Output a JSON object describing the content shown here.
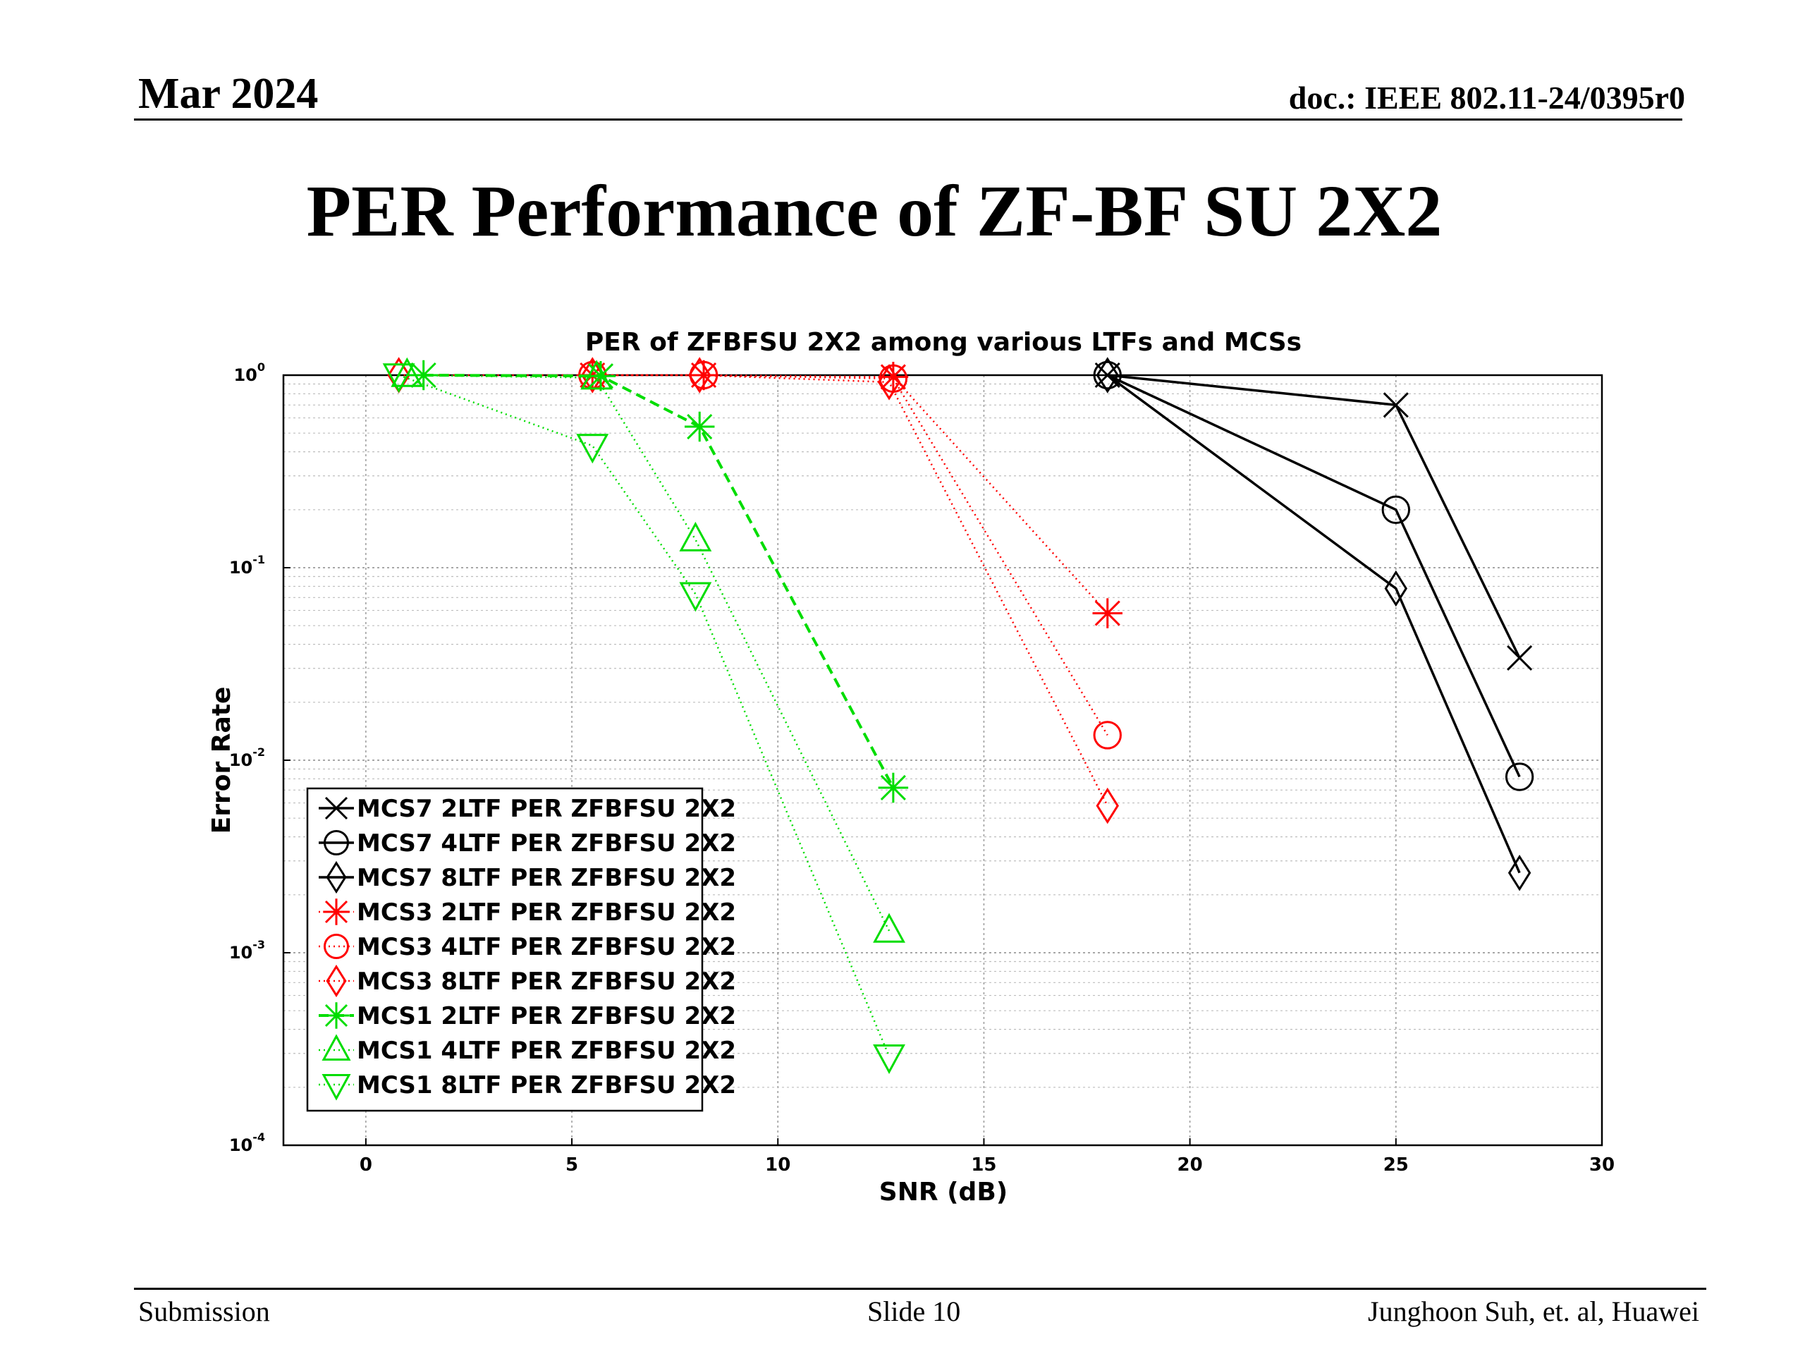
{
  "header": {
    "date": "Mar 2024",
    "doc_id": "doc.: IEEE 802.11-24/0395r0"
  },
  "slide": {
    "title": "PER Performance of ZF-BF SU 2X2"
  },
  "footer": {
    "left": "Submission",
    "center": "Slide 10",
    "right": "Junghoon Suh, et. al, Huawei"
  },
  "chart_data": {
    "type": "line",
    "title": "PER of ZFBFSU 2X2 among various LTFs and MCSs",
    "xlabel": "SNR (dB)",
    "ylabel": "Error Rate",
    "xlim": [
      -2,
      30
    ],
    "ylim": [
      0.0001,
      1
    ],
    "yscale": "log",
    "grid": true,
    "legend_position": "lower-left",
    "x_ticks": [
      {
        "value": 0,
        "label": "0"
      },
      {
        "value": 5,
        "label": "5"
      },
      {
        "value": 10,
        "label": "10"
      },
      {
        "value": 15,
        "label": "15"
      },
      {
        "value": 20,
        "label": "20"
      },
      {
        "value": 25,
        "label": "25"
      },
      {
        "value": 30,
        "label": "30"
      }
    ],
    "y_ticks": [
      {
        "value": 1,
        "base": "10",
        "exp": "0"
      },
      {
        "value": 0.1,
        "base": "10",
        "exp": "-1"
      },
      {
        "value": 0.01,
        "base": "10",
        "exp": "-2"
      },
      {
        "value": 0.001,
        "base": "10",
        "exp": "-3"
      },
      {
        "value": 0.0001,
        "base": "10",
        "exp": "-4"
      }
    ],
    "series": [
      {
        "name": "MCS7 2LTF PER ZFBFSU 2X2",
        "color": "#000000",
        "marker": "x",
        "style": "solid",
        "x": [
          18,
          25,
          28
        ],
        "y": [
          1.0,
          0.7,
          0.034
        ]
      },
      {
        "name": "MCS7 4LTF PER ZFBFSU 2X2",
        "color": "#000000",
        "marker": "circle",
        "style": "solid",
        "x": [
          18,
          25,
          28
        ],
        "y": [
          1.0,
          0.2,
          0.0082
        ]
      },
      {
        "name": "MCS7 8LTF PER ZFBFSU 2X2",
        "color": "#000000",
        "marker": "diamond",
        "style": "solid",
        "x": [
          18,
          25,
          28
        ],
        "y": [
          1.0,
          0.078,
          0.0026
        ]
      },
      {
        "name": "MCS3 2LTF PER ZFBFSU 2X2",
        "color": "#ff0000",
        "marker": "star",
        "style": "dotted",
        "x": [
          5.5,
          8.2,
          12.8,
          18
        ],
        "y": [
          1.0,
          1.0,
          0.98,
          0.058
        ]
      },
      {
        "name": "MCS3 4LTF PER ZFBFSU 2X2",
        "color": "#ff0000",
        "marker": "circle",
        "style": "dotted",
        "x": [
          5.5,
          8.2,
          12.8,
          18
        ],
        "y": [
          1.0,
          1.0,
          0.96,
          0.0135
        ]
      },
      {
        "name": "MCS3 8LTF PER ZFBFSU 2X2",
        "color": "#ff0000",
        "marker": "diamond",
        "style": "dotted",
        "x": [
          0.8,
          5.5,
          8.1,
          12.7,
          18
        ],
        "y": [
          1.0,
          1.0,
          1.0,
          0.92,
          0.0058
        ]
      },
      {
        "name": "MCS1 2LTF PER ZFBFSU 2X2",
        "color": "#00dd00",
        "marker": "star",
        "style": "dashed",
        "x": [
          1.4,
          5.7,
          8.1,
          12.8
        ],
        "y": [
          1.0,
          0.99,
          0.54,
          0.0072
        ]
      },
      {
        "name": "MCS1 4LTF PER ZFBFSU 2X2",
        "color": "#00dd00",
        "marker": "triangle-up",
        "style": "dotted",
        "x": [
          1.0,
          5.6,
          8.0,
          12.7
        ],
        "y": [
          1.0,
          0.97,
          0.14,
          0.0013
        ]
      },
      {
        "name": "MCS1 8LTF PER ZFBFSU 2X2",
        "color": "#00dd00",
        "marker": "triangle-down",
        "style": "dotted",
        "x": [
          0.8,
          5.5,
          8.0,
          12.7
        ],
        "y": [
          1.0,
          0.43,
          0.073,
          0.00029
        ]
      }
    ]
  }
}
